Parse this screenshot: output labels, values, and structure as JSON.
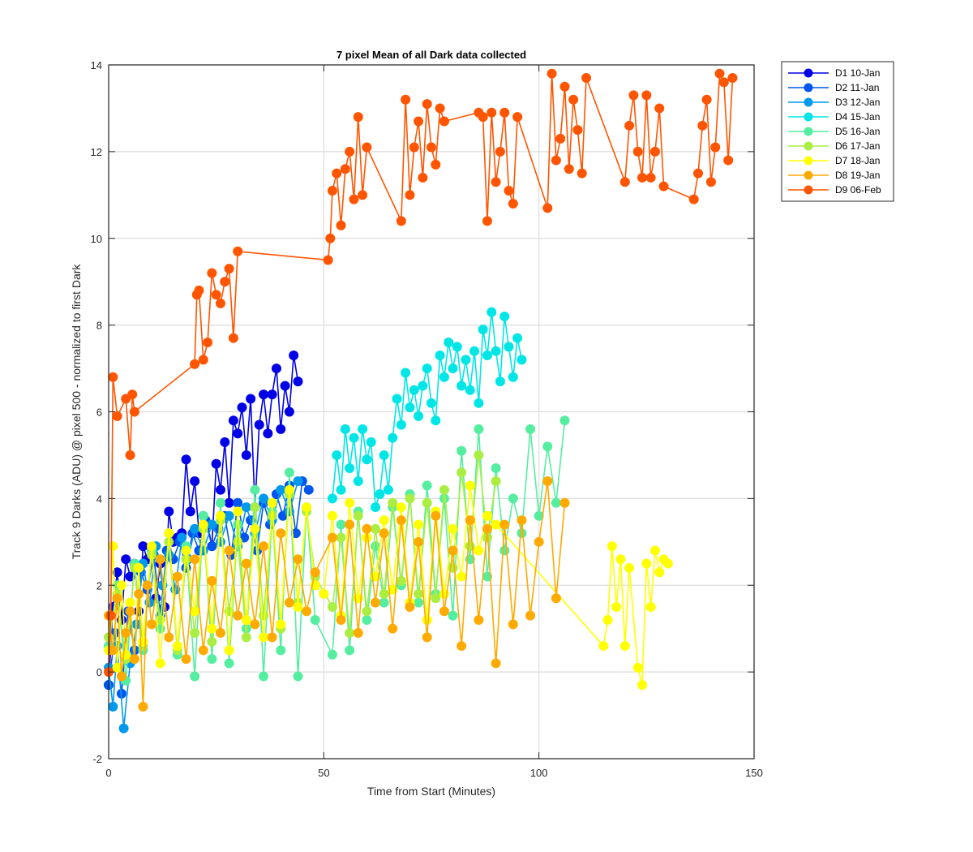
{
  "chart_data": {
    "type": "line",
    "title": "7 pixel Mean of all Dark data collected",
    "xlabel": "Time from Start (Minutes)",
    "ylabel": "Track 9 Darks (ADU) @ pixel 500 - normalized to first Dark",
    "xlim": [
      0,
      150
    ],
    "ylim": [
      -2,
      14
    ],
    "xticks": [
      0,
      50,
      100,
      150
    ],
    "yticks": [
      -2,
      0,
      2,
      4,
      6,
      8,
      10,
      12,
      14
    ],
    "grid": true,
    "marker": "circle",
    "legend_position": "outside-top-right",
    "series": [
      {
        "name": "D1 10-Jan",
        "color": "#0000e6",
        "x": [
          0,
          1,
          2,
          3,
          4,
          5,
          6,
          7,
          8,
          9,
          10,
          11,
          12,
          13,
          14,
          15,
          16,
          17,
          18,
          19,
          20,
          21,
          22,
          23,
          24,
          25,
          26,
          27,
          28,
          29,
          30,
          31,
          32,
          33,
          34,
          35,
          36,
          37,
          38,
          39,
          40,
          41,
          42,
          43,
          44
        ],
        "y": [
          -0.3,
          1.5,
          2.3,
          1.2,
          2.6,
          2.2,
          2.5,
          1.4,
          2.9,
          2.6,
          2.8,
          1.7,
          2.5,
          1.5,
          3.7,
          3.0,
          3.1,
          3.2,
          4.9,
          3.7,
          4.4,
          3.2,
          3.6,
          3.4,
          2.9,
          4.8,
          4.2,
          5.3,
          3.9,
          5.8,
          5.5,
          6.1,
          5.0,
          6.3,
          3.8,
          5.7,
          6.4,
          5.5,
          6.4,
          7.0,
          5.6,
          6.6,
          6.0,
          7.3,
          6.7
        ]
      },
      {
        "name": "D2 11-Jan",
        "color": "#0055ee",
        "x": [
          0,
          1.5,
          3,
          4.5,
          6,
          7.5,
          9,
          10.5,
          12,
          13.5,
          15,
          16.5,
          18,
          19.5,
          21,
          22.5,
          24,
          25.5,
          27,
          28.5,
          30,
          31.5,
          33,
          34.5,
          36,
          37.5,
          39,
          40.5,
          42,
          43.5,
          45,
          46.5
        ],
        "y": [
          -0.3,
          0.9,
          -0.5,
          1.4,
          0.5,
          2.3,
          1.9,
          2.7,
          1.3,
          2.8,
          2.6,
          3.0,
          2.4,
          3.2,
          2.8,
          3.5,
          2.9,
          3.3,
          3.6,
          2.7,
          3.9,
          3.1,
          3.5,
          2.8,
          3.9,
          3.4,
          4.1,
          3.6,
          4.3,
          3.2,
          4.4,
          4.2
        ]
      },
      {
        "name": "D3 12-Jan",
        "color": "#0099ee",
        "x": [
          0,
          1,
          2,
          3.5,
          5,
          6.5,
          8,
          9.5,
          11,
          12.5,
          14,
          15.5,
          17,
          18.5,
          20,
          22,
          24,
          26,
          28,
          30,
          32,
          34,
          36,
          38,
          40,
          42,
          44
        ],
        "y": [
          0.1,
          -0.8,
          0.6,
          -1.3,
          0.2,
          1.1,
          2.5,
          1.6,
          2.9,
          2.0,
          2.7,
          1.9,
          3.1,
          2.6,
          3.3,
          2.8,
          3.4,
          3.0,
          3.6,
          2.9,
          3.8,
          3.2,
          4.0,
          3.5,
          4.2,
          3.7,
          4.4
        ]
      },
      {
        "name": "D4 15-Jan",
        "color": "#00e6e6",
        "x": [
          52,
          53,
          54,
          55,
          56,
          57,
          58,
          59,
          60,
          61,
          62,
          63,
          64,
          65,
          66,
          67,
          68,
          69,
          70,
          71,
          72,
          73,
          74,
          75,
          76,
          77,
          78,
          79,
          80,
          81,
          82,
          83,
          84,
          85,
          86,
          87,
          88,
          89,
          90,
          91,
          92,
          93,
          94,
          95,
          96
        ],
        "y": [
          4.0,
          5.0,
          4.2,
          5.6,
          4.7,
          5.4,
          4.4,
          5.6,
          4.9,
          5.3,
          3.8,
          4.1,
          5.0,
          4.2,
          5.4,
          6.3,
          5.7,
          6.9,
          6.1,
          6.5,
          5.9,
          6.6,
          7.0,
          6.2,
          5.8,
          7.3,
          6.8,
          7.6,
          7.0,
          7.5,
          6.6,
          7.2,
          6.5,
          7.4,
          6.2,
          7.9,
          7.3,
          8.3,
          7.4,
          6.7,
          8.2,
          7.5,
          6.8,
          7.7,
          7.2
        ]
      },
      {
        "name": "D5 16-Jan",
        "color": "#55eea0",
        "x": [
          0,
          2,
          4,
          6,
          8,
          10,
          12,
          14,
          16,
          18,
          20,
          22,
          24,
          26,
          28,
          30,
          32,
          34,
          36,
          38,
          40,
          42,
          44,
          46,
          48,
          52,
          54,
          56,
          58,
          60,
          62,
          64,
          66,
          68,
          70,
          72,
          74,
          76,
          78,
          80,
          82,
          84,
          86,
          88,
          90,
          92,
          94,
          96,
          98,
          100,
          102,
          104,
          106
        ],
        "y": [
          0.6,
          2.0,
          -0.2,
          2.5,
          0.5,
          2.8,
          1.0,
          3.2,
          0.4,
          2.9,
          -0.1,
          3.6,
          0.3,
          3.9,
          0.2,
          3.4,
          1.0,
          4.2,
          -0.1,
          3.7,
          0.5,
          4.6,
          -0.1,
          3.8,
          1.2,
          0.4,
          3.4,
          0.5,
          3.7,
          1.2,
          2.9,
          1.6,
          3.8,
          2.0,
          4.1,
          1.6,
          4.3,
          1.8,
          4.0,
          1.3,
          5.1,
          2.6,
          5.6,
          2.2,
          4.7,
          2.8,
          4.0,
          3.2,
          5.6,
          3.6,
          5.2,
          3.9,
          5.8
        ]
      },
      {
        "name": "D6 17-Jan",
        "color": "#aaee44",
        "x": [
          0,
          2,
          4,
          6,
          8,
          10,
          12,
          14,
          16,
          18,
          20,
          22,
          24,
          26,
          28,
          30,
          32,
          34,
          36,
          38,
          40,
          42,
          44,
          46,
          48,
          52,
          54,
          56,
          58,
          60,
          62,
          64,
          66,
          68,
          70,
          72,
          74,
          76,
          78,
          80,
          82,
          84,
          86,
          88,
          90
        ],
        "y": [
          0.8,
          1.8,
          0.3,
          2.4,
          0.6,
          2.7,
          1.2,
          3.0,
          0.5,
          2.6,
          0.9,
          3.3,
          0.7,
          3.5,
          1.4,
          3.0,
          0.8,
          3.8,
          1.3,
          3.6,
          1.0,
          4.1,
          1.6,
          3.7,
          2.2,
          1.5,
          3.1,
          0.9,
          3.6,
          1.4,
          3.3,
          1.8,
          3.9,
          2.1,
          4.0,
          1.8,
          3.9,
          1.7,
          4.2,
          2.4,
          4.6,
          2.9,
          5.0,
          3.1,
          4.4
        ]
      },
      {
        "name": "D7 18-Jan",
        "color": "#ffff00",
        "x": [
          0,
          1,
          2,
          3,
          4,
          5,
          6,
          7,
          8,
          10,
          12,
          14,
          16,
          18,
          20,
          22,
          24,
          26,
          28,
          30,
          32,
          34,
          36,
          38,
          40,
          42,
          44,
          46,
          48,
          50,
          52,
          54,
          56,
          58,
          60,
          62,
          64,
          66,
          68,
          70,
          72,
          74,
          76,
          78,
          80,
          82,
          84,
          86,
          88,
          90,
          115,
          116,
          117,
          118,
          119,
          120,
          121,
          123,
          124,
          125,
          126,
          127,
          128,
          129,
          130
        ],
        "y": [
          0.5,
          2.9,
          0.1,
          2.0,
          0.4,
          1.6,
          0.3,
          2.4,
          0.7,
          2.9,
          0.2,
          3.2,
          0.6,
          2.8,
          1.4,
          3.4,
          1.0,
          3.6,
          0.5,
          3.7,
          1.2,
          3.3,
          0.8,
          3.9,
          1.1,
          4.2,
          1.5,
          3.8,
          2.0,
          1.8,
          3.6,
          1.3,
          3.9,
          1.7,
          3.1,
          2.2,
          3.5,
          1.9,
          3.8,
          1.6,
          3.4,
          1.2,
          3.7,
          1.8,
          3.3,
          2.2,
          4.3,
          2.8,
          3.6,
          3.4,
          0.6,
          1.2,
          2.9,
          1.5,
          2.6,
          0.6,
          2.4,
          0.1,
          -0.3,
          2.5,
          1.5,
          2.8,
          2.3,
          2.6,
          2.5
        ]
      },
      {
        "name": "D8 19-Jan",
        "color": "#ffaa00",
        "x": [
          0,
          1,
          2,
          3,
          4,
          5,
          6,
          7,
          8,
          9,
          10,
          12,
          14,
          16,
          18,
          20,
          22,
          24,
          26,
          28,
          30,
          32,
          34,
          36,
          38,
          40,
          42,
          44,
          46,
          48,
          52,
          54,
          56,
          58,
          60,
          62,
          64,
          66,
          68,
          70,
          72,
          74,
          76,
          78,
          80,
          82,
          84,
          86,
          88,
          90,
          92,
          94,
          96,
          98,
          100,
          102,
          104,
          106
        ],
        "y": [
          1.3,
          0.5,
          1.7,
          -0.1,
          0.9,
          1.4,
          0.3,
          1.8,
          -0.8,
          2.0,
          1.1,
          2.6,
          0.8,
          2.2,
          0.3,
          2.6,
          0.5,
          2.1,
          0.9,
          2.8,
          1.3,
          2.5,
          1.1,
          2.9,
          0.8,
          3.2,
          1.6,
          2.6,
          1.4,
          2.3,
          3.1,
          1.2,
          3.4,
          0.9,
          3.3,
          1.6,
          3.2,
          1.0,
          3.5,
          1.5,
          3.0,
          0.8,
          3.6,
          1.4,
          2.8,
          0.6,
          3.5,
          1.2,
          3.3,
          0.2,
          3.4,
          1.1,
          3.5,
          1.3,
          3.0,
          4.4,
          1.7,
          3.9
        ]
      },
      {
        "name": "D9 06-Feb",
        "color": "#ff5500",
        "x": [
          0,
          0.5,
          1,
          2,
          4,
          5,
          5.5,
          6,
          20,
          20.5,
          21,
          22,
          23,
          24,
          25,
          26,
          27,
          28,
          29,
          30,
          51,
          51.5,
          52,
          53,
          54,
          55,
          56,
          57,
          58,
          59,
          60,
          68,
          69,
          70,
          71,
          72,
          73,
          74,
          75,
          76,
          77,
          78,
          86,
          87,
          88,
          89,
          90,
          91,
          92,
          93,
          94,
          95,
          102,
          103,
          104,
          105,
          106,
          107,
          108,
          109,
          110,
          111,
          120,
          121,
          122,
          123,
          124,
          125,
          126,
          127,
          128,
          129,
          136,
          137,
          138,
          139,
          140,
          141,
          142,
          143,
          144,
          145
        ],
        "y": [
          0,
          1.3,
          6.8,
          5.9,
          6.3,
          5.0,
          6.4,
          6.0,
          7.1,
          8.7,
          8.8,
          7.2,
          7.6,
          9.2,
          8.7,
          8.5,
          9.0,
          9.3,
          7.7,
          9.7,
          9.5,
          10.0,
          11.1,
          11.5,
          10.3,
          11.6,
          12.0,
          10.9,
          12.8,
          11.0,
          12.1,
          10.4,
          13.2,
          11.0,
          12.1,
          12.7,
          11.4,
          13.1,
          12.1,
          11.7,
          13.0,
          12.7,
          12.9,
          12.8,
          10.4,
          12.9,
          11.3,
          12.0,
          12.9,
          11.1,
          10.8,
          12.8,
          10.7,
          13.8,
          11.8,
          12.3,
          13.5,
          11.6,
          13.2,
          12.5,
          11.5,
          13.7,
          11.3,
          12.6,
          13.3,
          12.0,
          11.4,
          13.3,
          11.4,
          12.0,
          13.0,
          11.2,
          10.9,
          11.5,
          12.6,
          13.2,
          11.3,
          12.1,
          13.8,
          13.6,
          11.8,
          13.7
        ]
      }
    ]
  }
}
